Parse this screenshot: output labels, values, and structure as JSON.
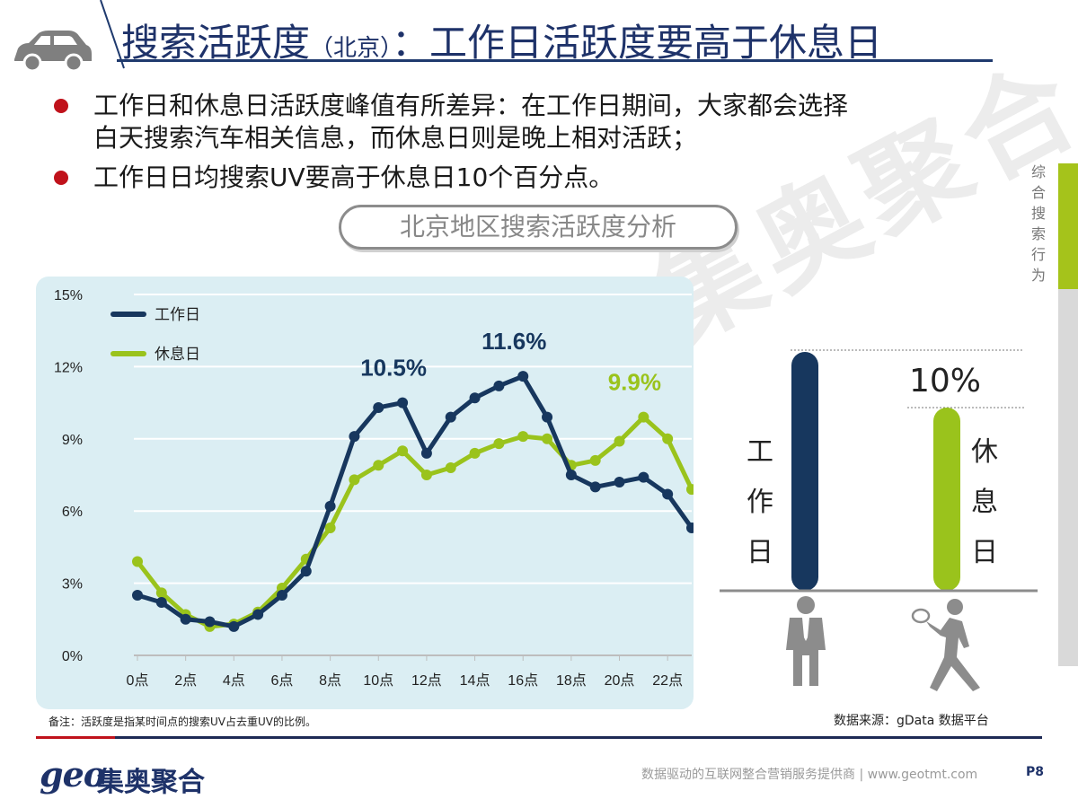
{
  "header": {
    "title_main": "搜索活跃度",
    "title_sub": "（北京）",
    "title_rest": "：工作日活跃度要高于休息日"
  },
  "bullets": [
    {
      "line1": "工作日和休息日活跃度峰值有所差异：在工作日期间，大家都会选择",
      "line2": "白天搜索汽车相关信息，而休息日则是晚上相对活跃；"
    },
    {
      "line1": "工作日日均搜索UV要高于休息日10个百分点。",
      "line2": ""
    }
  ],
  "side_nav": {
    "label": "综合搜索行为"
  },
  "pill_heading": "北京地区搜索活跃度分析",
  "watermark": "集奥聚合",
  "chart_data": {
    "type": "line",
    "x": [
      "0点",
      "1点",
      "2点",
      "3点",
      "4点",
      "5点",
      "6点",
      "7点",
      "8点",
      "9点",
      "10点",
      "11点",
      "12点",
      "13点",
      "14点",
      "15点",
      "16点",
      "17点",
      "18点",
      "19点",
      "20点",
      "21点",
      "22点",
      "23点"
    ],
    "x_tick_labels": [
      "0点",
      "2点",
      "4点",
      "6点",
      "8点",
      "10点",
      "12点",
      "14点",
      "16点",
      "18点",
      "20点",
      "22点"
    ],
    "ylim": [
      0,
      15
    ],
    "y_tick_labels": [
      "0%",
      "3%",
      "6%",
      "9%",
      "12%",
      "15%"
    ],
    "grid": true,
    "legend_position": "top-left",
    "series": [
      {
        "name": "工作日",
        "color": "#17375e",
        "values": [
          2.5,
          2.2,
          1.5,
          1.4,
          1.2,
          1.7,
          2.5,
          3.5,
          6.2,
          9.1,
          10.3,
          10.5,
          8.4,
          9.9,
          10.7,
          11.2,
          11.6,
          9.9,
          7.5,
          7.0,
          7.2,
          7.4,
          6.7,
          5.3
        ]
      },
      {
        "name": "休息日",
        "color": "#9ac31c",
        "values": [
          3.9,
          2.6,
          1.7,
          1.2,
          1.3,
          1.8,
          2.8,
          4.0,
          5.3,
          7.3,
          7.9,
          8.5,
          7.5,
          7.8,
          8.4,
          8.8,
          9.1,
          9.0,
          7.9,
          8.1,
          8.9,
          9.9,
          9.0,
          6.9
        ]
      }
    ],
    "annotations": [
      {
        "text": "10.5%",
        "series": "工作日",
        "x": "11点",
        "color": "#17375e"
      },
      {
        "text": "11.6%",
        "series": "工作日",
        "x": "16点",
        "color": "#17375e"
      },
      {
        "text": "9.9%",
        "series": "休息日",
        "x": "21点",
        "color": "#9ac31c"
      }
    ]
  },
  "comparison": {
    "workday": {
      "label": "工作日",
      "color": "#17375e",
      "value": 1.0
    },
    "restday": {
      "label": "休息日",
      "color": "#9ac31c",
      "value": 0.9
    },
    "diff_label": "10%"
  },
  "footer": {
    "note": "备注：活跃度是指某时间点的搜索UV占去重UV的比例。",
    "source": "数据来源：gData  数据平台",
    "logo_geo": "geo",
    "logo_cn": "集奥聚合",
    "tagline": "数据驱动的互联网整合营销服务提供商 | www.geotmt.com",
    "page_number": "P8"
  }
}
